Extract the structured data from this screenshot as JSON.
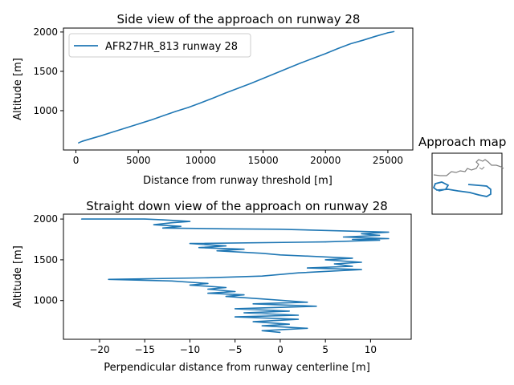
{
  "colors": {
    "series": "#1f77b4",
    "map_line": "#808080"
  },
  "chart_data": [
    {
      "type": "line",
      "title": "Side view of the approach on runway 28",
      "xlabel": "Distance from runway threshold [m]",
      "ylabel": "Altitude [m]",
      "xlim": [
        -1000,
        27000
      ],
      "ylim": [
        500,
        2050
      ],
      "xticks": [
        "0",
        "5000",
        "10000",
        "15000",
        "20000",
        "25000"
      ],
      "yticks": [
        "1000",
        "1500",
        "2000"
      ],
      "legend": {
        "location": "upper left",
        "entries": [
          "AFR27HR_813 runway 28"
        ]
      },
      "series": [
        {
          "name": "AFR27HR_813 runway 28",
          "x": [
            200,
            500,
            1000,
            2000,
            3000,
            4000,
            5000,
            6000,
            7000,
            8000,
            9000,
            10000,
            11000,
            12000,
            13000,
            14000,
            15000,
            16000,
            17000,
            18000,
            19000,
            20000,
            21000,
            22000,
            23000,
            24000,
            25000,
            25500
          ],
          "y": [
            590,
            610,
            635,
            680,
            730,
            780,
            830,
            880,
            935,
            990,
            1040,
            1100,
            1160,
            1225,
            1285,
            1345,
            1410,
            1475,
            1540,
            1605,
            1665,
            1725,
            1790,
            1850,
            1895,
            1945,
            1990,
            2005
          ]
        }
      ]
    },
    {
      "type": "line",
      "title": "Straight down view of the approach on runway 28",
      "xlabel": "Perpendicular distance from runway centerline [m]",
      "ylabel": "Altitude [m]",
      "xlim": [
        -24,
        14.5
      ],
      "ylim": [
        525,
        2060
      ],
      "xticks": [
        "−20",
        "−15",
        "−10",
        "−5",
        "0",
        "5",
        "10"
      ],
      "yticks": [
        "1000",
        "1500",
        "2000"
      ],
      "series": [
        {
          "x": [
            -22,
            -15,
            -13,
            -10,
            -12,
            -14,
            -11,
            -13,
            -6,
            0,
            12,
            9,
            11,
            7,
            12,
            8,
            11,
            5,
            -10,
            -6,
            -9,
            -4,
            -7,
            -2,
            0,
            4,
            8,
            5,
            9,
            6,
            8,
            3,
            9,
            2,
            -2,
            -8,
            -19,
            -12,
            -8,
            -10,
            -6,
            -8,
            -5,
            -8,
            -4,
            -6,
            -2,
            3,
            -3,
            4,
            -5,
            1,
            -4,
            2,
            -5,
            2,
            -3,
            1,
            -2,
            3,
            -2,
            0
          ],
          "y": [
            2000,
            2000,
            1990,
            1970,
            1955,
            1930,
            1910,
            1890,
            1880,
            1875,
            1840,
            1820,
            1800,
            1780,
            1760,
            1750,
            1740,
            1720,
            1700,
            1670,
            1650,
            1630,
            1610,
            1580,
            1560,
            1540,
            1520,
            1500,
            1470,
            1450,
            1420,
            1400,
            1380,
            1340,
            1300,
            1280,
            1260,
            1240,
            1210,
            1190,
            1160,
            1140,
            1110,
            1090,
            1070,
            1050,
            1020,
            980,
            960,
            930,
            900,
            870,
            850,
            820,
            800,
            770,
            740,
            710,
            690,
            660,
            630,
            610
          ]
        }
      ]
    },
    {
      "type": "line",
      "title": "Approach map"
    }
  ]
}
